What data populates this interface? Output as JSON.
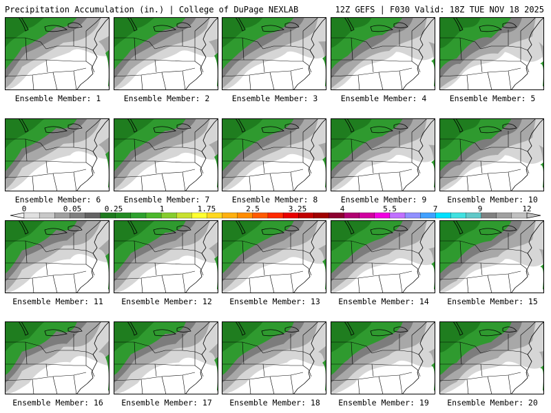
{
  "header": {
    "left": "Precipitation Accumulation (in.) | College of DuPage NEXLAB",
    "right": "12Z GEFS | F030 Valid: 18Z TUE NOV 18 2025"
  },
  "members": [
    "Ensemble Member: 1",
    "Ensemble Member: 2",
    "Ensemble Member: 3",
    "Ensemble Member: 4",
    "Ensemble Member: 5",
    "Ensemble Member: 6",
    "Ensemble Member: 7",
    "Ensemble Member: 8",
    "Ensemble Member: 9",
    "Ensemble Member: 10",
    "Ensemble Member: 11",
    "Ensemble Member: 12",
    "Ensemble Member: 13",
    "Ensemble Member: 14",
    "Ensemble Member: 15",
    "Ensemble Member: 16",
    "Ensemble Member: 17",
    "Ensemble Member: 18",
    "Ensemble Member: 19",
    "Ensemble Member: 20"
  ],
  "colorbar": {
    "labels": [
      "0",
      "0.05",
      "0.25",
      "1",
      "1.75",
      "2.5",
      "3.25",
      "4",
      "5.5",
      "7",
      "9",
      "12"
    ],
    "colors": [
      "#e0e0e0",
      "#c8c8c8",
      "#a0a0a0",
      "#808080",
      "#636363",
      "#1e7a1e",
      "#228b22",
      "#2ea02e",
      "#4cb82c",
      "#86cc2e",
      "#c8e030",
      "#ffff30",
      "#ffd820",
      "#ffb010",
      "#ff8c00",
      "#ff5a00",
      "#ff2a00",
      "#e80000",
      "#c00000",
      "#a00000",
      "#8c0030",
      "#b00070",
      "#d000a0",
      "#f000e0",
      "#c070ff",
      "#9090ff",
      "#40a0ff",
      "#00e0ff",
      "#40e0e0",
      "#60c8c8",
      "#808080",
      "#a0a0a0",
      "#c0c0c0"
    ]
  },
  "map_colors": {
    "light_gray": "#d6d6d6",
    "mid_gray": "#a8a8a8",
    "dark_gray": "#7c7c7c",
    "dark_green": "#1f7d1f",
    "green": "#2f9a2f",
    "light_green": "#55b83a",
    "yellow_green": "#c8e640"
  }
}
